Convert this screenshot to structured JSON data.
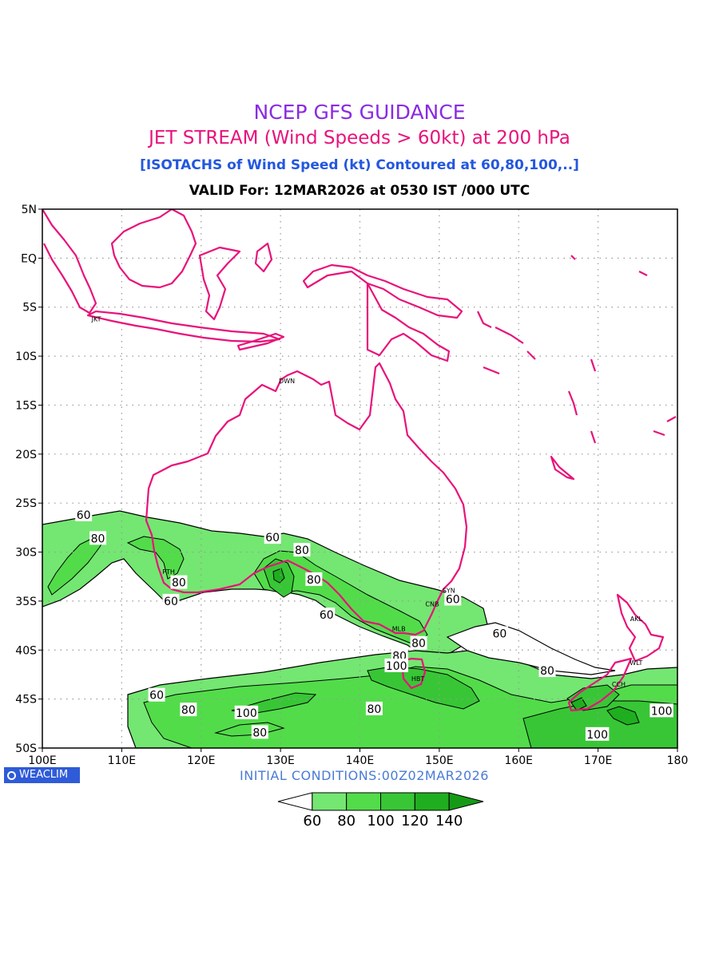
{
  "titles": {
    "line1": "NCEP GFS GUIDANCE",
    "line2": "JET STREAM (Wind Speeds > 60kt) at 200 hPa",
    "line3": "[ISOTACHS of Wind Speed (kt) Contoured at 60,80,100,..]",
    "line4": "VALID For: 12MAR2026 at 0530 IST /000 UTC"
  },
  "map": {
    "lon_range": [
      100,
      180
    ],
    "lat_range": [
      -50,
      5
    ],
    "x_ticks": [
      "100E",
      "110E",
      "120E",
      "130E",
      "140E",
      "150E",
      "160E",
      "170E",
      "180"
    ],
    "y_ticks": [
      "5N",
      "EQ",
      "5S",
      "10S",
      "15S",
      "20S",
      "25S",
      "30S",
      "35S",
      "40S",
      "45S",
      "50S"
    ],
    "grid": true,
    "coastline_color": "#e8127a"
  },
  "cities": [
    {
      "code": "JKT",
      "lon": 106.8,
      "lat": -6.2
    },
    {
      "code": "DWN",
      "lon": 130.8,
      "lat": -12.5
    },
    {
      "code": "PTH",
      "lon": 115.9,
      "lat": -32.0
    },
    {
      "code": "SYN",
      "lon": 151.2,
      "lat": -33.9
    },
    {
      "code": "CNB",
      "lon": 149.1,
      "lat": -35.3
    },
    {
      "code": "MLB",
      "lon": 144.9,
      "lat": -37.8
    },
    {
      "code": "HBT",
      "lon": 147.3,
      "lat": -42.9
    },
    {
      "code": "AKL",
      "lon": 174.8,
      "lat": -36.8
    },
    {
      "code": "WLT",
      "lon": 174.8,
      "lat": -41.3
    },
    {
      "code": "CCH",
      "lon": 172.6,
      "lat": -43.5
    }
  ],
  "contour_labels": [
    {
      "text": "60",
      "lon": 105.2,
      "lat": -26.2
    },
    {
      "text": "80",
      "lon": 107.0,
      "lat": -28.6
    },
    {
      "text": "60",
      "lon": 129.0,
      "lat": -28.5
    },
    {
      "text": "80",
      "lon": 132.7,
      "lat": -29.8
    },
    {
      "text": "80",
      "lon": 117.2,
      "lat": -33.1
    },
    {
      "text": "60",
      "lon": 116.2,
      "lat": -35.0
    },
    {
      "text": "80",
      "lon": 134.2,
      "lat": -32.8
    },
    {
      "text": "60",
      "lon": 135.8,
      "lat": -36.4
    },
    {
      "text": "60",
      "lon": 151.7,
      "lat": -34.8
    },
    {
      "text": "80",
      "lon": 147.4,
      "lat": -39.3
    },
    {
      "text": "80",
      "lon": 145.0,
      "lat": -40.6
    },
    {
      "text": "100",
      "lon": 144.6,
      "lat": -41.6
    },
    {
      "text": "60",
      "lon": 157.6,
      "lat": -38.3
    },
    {
      "text": "80",
      "lon": 163.6,
      "lat": -42.1
    },
    {
      "text": "60",
      "lon": 114.4,
      "lat": -44.6
    },
    {
      "text": "80",
      "lon": 118.4,
      "lat": -46.1
    },
    {
      "text": "100",
      "lon": 125.7,
      "lat": -46.4
    },
    {
      "text": "80",
      "lon": 127.4,
      "lat": -48.4
    },
    {
      "text": "80",
      "lon": 141.8,
      "lat": -46.0
    },
    {
      "text": "100",
      "lon": 178.0,
      "lat": -46.2
    },
    {
      "text": "100",
      "lon": 169.9,
      "lat": -48.6
    }
  ],
  "legend": {
    "levels": [
      "60",
      "80",
      "100",
      "120",
      "140"
    ],
    "colors": [
      "#ffffff",
      "#74e672",
      "#52dc4a",
      "#38c636",
      "#1fae1f",
      "#169a16"
    ]
  },
  "fill_colors": {
    "c60": "#74e672",
    "c80": "#52dc4a",
    "c100": "#38c636",
    "c120": "#1fae1f"
  },
  "footer": {
    "logo": "WEACLIM",
    "initial_conditions": "INITIAL  CONDITIONS:00Z02MAR2026"
  }
}
